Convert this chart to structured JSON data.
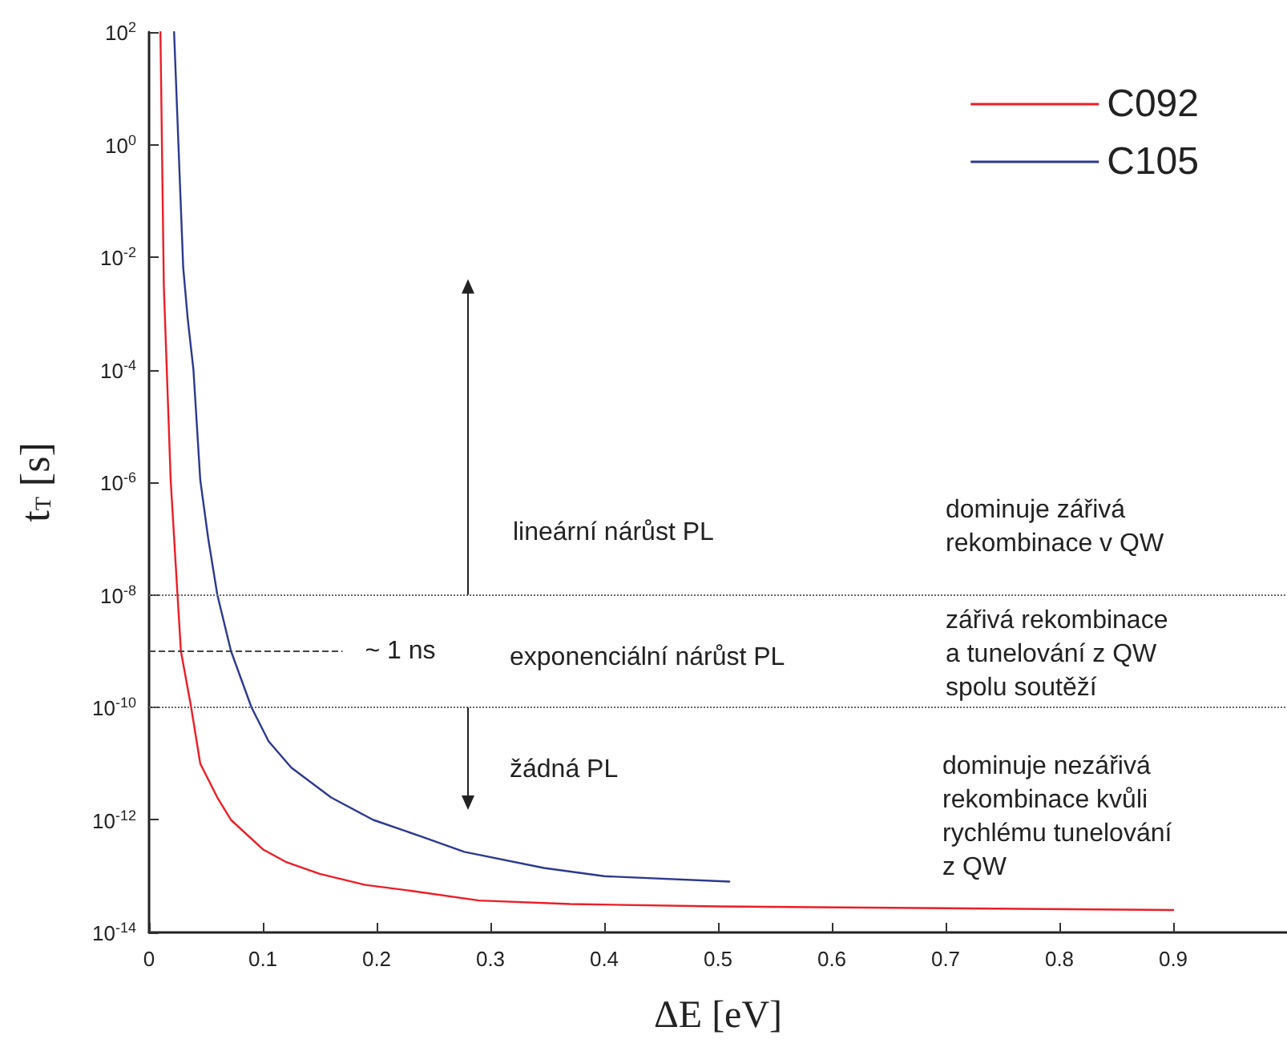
{
  "chart_data": {
    "type": "line",
    "xlabel": "ΔE [eV]",
    "ylabel": "t$_{T}$ [s]",
    "log": "y",
    "grid": false,
    "legend": "top right",
    "line_style": "solid",
    "xlim": [
      0,
      1.0
    ],
    "xticks": [
      0,
      0.1,
      0.2,
      0.3,
      0.4,
      0.5,
      0.6,
      0.7,
      0.8,
      0.9
    ],
    "ylim": [
      1e-14,
      100
    ],
    "yticks": [
      {
        "value": 100,
        "label": "10$^{2}$"
      },
      {
        "value": 1,
        "label": "10$^{0}$"
      },
      {
        "value": 0.01,
        "label": "10$^{-2}$"
      },
      {
        "value": 0.0001,
        "label": "10$^{-4}$"
      },
      {
        "value": 1e-06,
        "label": "10$^{-6}$"
      },
      {
        "value": 1e-08,
        "label": "10$^{-8}$"
      },
      {
        "value": 1e-10,
        "label": "10$^{-10}$"
      },
      {
        "value": 1e-12,
        "label": "10$^{-12}$"
      },
      {
        "value": 1e-14,
        "label": "10$^{-14}$"
      }
    ],
    "series": [
      {
        "name": "C092",
        "color": "#ee1c25",
        "x": [
          0.01,
          0.013,
          0.019,
          0.025,
          0.028,
          0.037,
          0.045,
          0.06,
          0.072,
          0.1,
          0.12,
          0.15,
          0.19,
          0.23,
          0.29,
          0.37,
          0.5,
          0.7,
          0.9
        ],
        "values": [
          100,
          0.003,
          1.1e-06,
          1e-08,
          1e-09,
          1e-10,
          1e-11,
          2.5e-12,
          1e-12,
          3e-13,
          1.8e-13,
          1.1e-13,
          7e-14,
          5.5e-14,
          3.7e-14,
          3.2e-14,
          2.9e-14,
          2.7e-14,
          2.5e-14
        ]
      },
      {
        "name": "C105",
        "color": "#2b3990",
        "x": [
          0.022,
          0.03,
          0.034,
          0.039,
          0.045,
          0.052,
          0.06,
          0.072,
          0.09,
          0.105,
          0.125,
          0.16,
          0.197,
          0.24,
          0.277,
          0.347,
          0.4,
          0.51
        ],
        "values": [
          100,
          0.0066,
          0.0008,
          0.0001,
          1.1e-06,
          1e-07,
          1e-08,
          1e-09,
          1e-10,
          2.5e-11,
          8.5e-12,
          2.5e-12,
          1e-12,
          5e-13,
          2.7e-13,
          1.4e-13,
          1e-13,
          8e-14
        ]
      }
    ],
    "ref_lines": [
      {
        "axis": "y",
        "value": 1e-08,
        "label": null,
        "color": "#666666",
        "line_style": "dotted"
      },
      {
        "axis": "y",
        "value": 1e-10,
        "label": null,
        "color": "#666666",
        "line_style": "dotted"
      },
      {
        "axis": "y",
        "value": 1e-09,
        "label": "~ 1 ns",
        "color": "#444444",
        "line_style": "dashed"
      }
    ],
    "annotations": [
      "lineární nárůst PL",
      "dominuje zářivá\nrekombinace v QW",
      "exponenciální nárůst PL",
      "zářivá rekombinace\na tunelování z QW\nspolu soutěží",
      "žádná PL",
      "dominuje nezářivá\nrekombinace kvůli\nrychlému tunelování\nz QW"
    ]
  }
}
